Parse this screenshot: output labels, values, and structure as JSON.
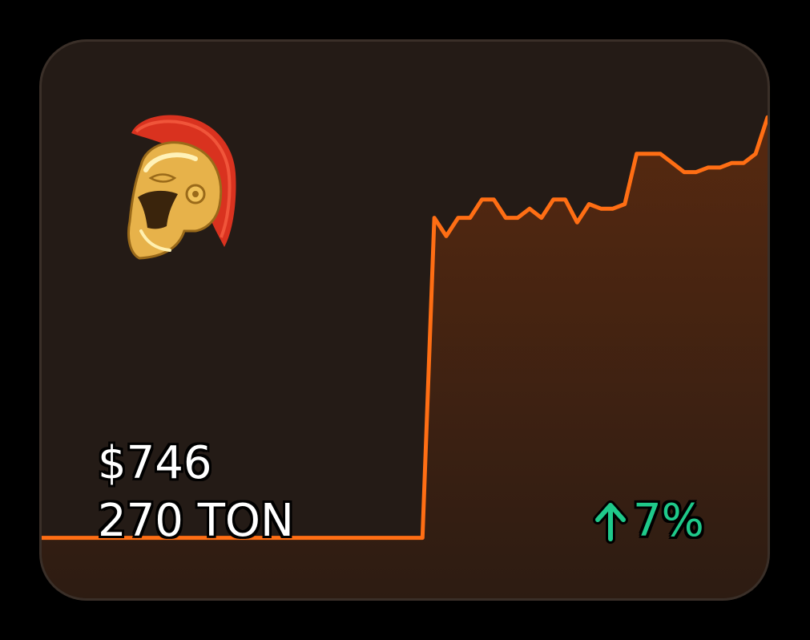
{
  "card": {
    "price": "$746",
    "ton": "270 TON",
    "change_value": "7%",
    "change_direction": "up",
    "icon": "spartan-helmet-icon"
  },
  "colors": {
    "line": "#ff6e14",
    "positive": "#1fc98a",
    "background": "#241b16"
  },
  "chart_data": {
    "type": "area",
    "title": "",
    "xlabel": "",
    "ylabel": "",
    "ylim": [
      0,
      100
    ],
    "x": [
      0,
      1,
      2,
      3,
      4,
      5,
      6,
      7,
      8,
      9,
      10,
      11,
      12,
      13,
      14,
      15,
      16,
      17,
      18,
      19,
      20,
      21,
      22,
      23,
      24,
      25,
      26,
      27,
      28,
      29,
      30,
      31,
      32,
      33,
      34,
      35,
      36,
      37,
      38,
      39,
      40,
      41,
      42,
      43,
      44,
      45,
      46,
      47,
      48,
      49,
      50,
      51,
      52,
      53,
      54,
      55,
      56,
      57,
      58,
      59,
      60,
      61
    ],
    "values": [
      2,
      2,
      2,
      2,
      2,
      2,
      2,
      2,
      2,
      2,
      2,
      2,
      2,
      2,
      2,
      2,
      2,
      2,
      2,
      2,
      2,
      2,
      2,
      2,
      2,
      2,
      2,
      2,
      2,
      2,
      2,
      2,
      2,
      72,
      68,
      72,
      72,
      76,
      76,
      72,
      72,
      74,
      72,
      76,
      76,
      71,
      75,
      74,
      74,
      75,
      86,
      86,
      86,
      84,
      82,
      82,
      83,
      83,
      84,
      84,
      86,
      94
    ]
  },
  "chart_data_series": {
    "series": [
      {
        "values": [
          2,
          2,
          2,
          2,
          2,
          2,
          2,
          2,
          2,
          2,
          2,
          2,
          2,
          2,
          2,
          2,
          2,
          2,
          2,
          2,
          2,
          2,
          2,
          2,
          2,
          2,
          2,
          2,
          2,
          2,
          2,
          2,
          2,
          72,
          68,
          72,
          72,
          76,
          76,
          72,
          72,
          74,
          72,
          76,
          76,
          71,
          75,
          74,
          74,
          75,
          86,
          86,
          86,
          84,
          82,
          82,
          83,
          83,
          84,
          84,
          86,
          94
        ]
      }
    ]
  }
}
